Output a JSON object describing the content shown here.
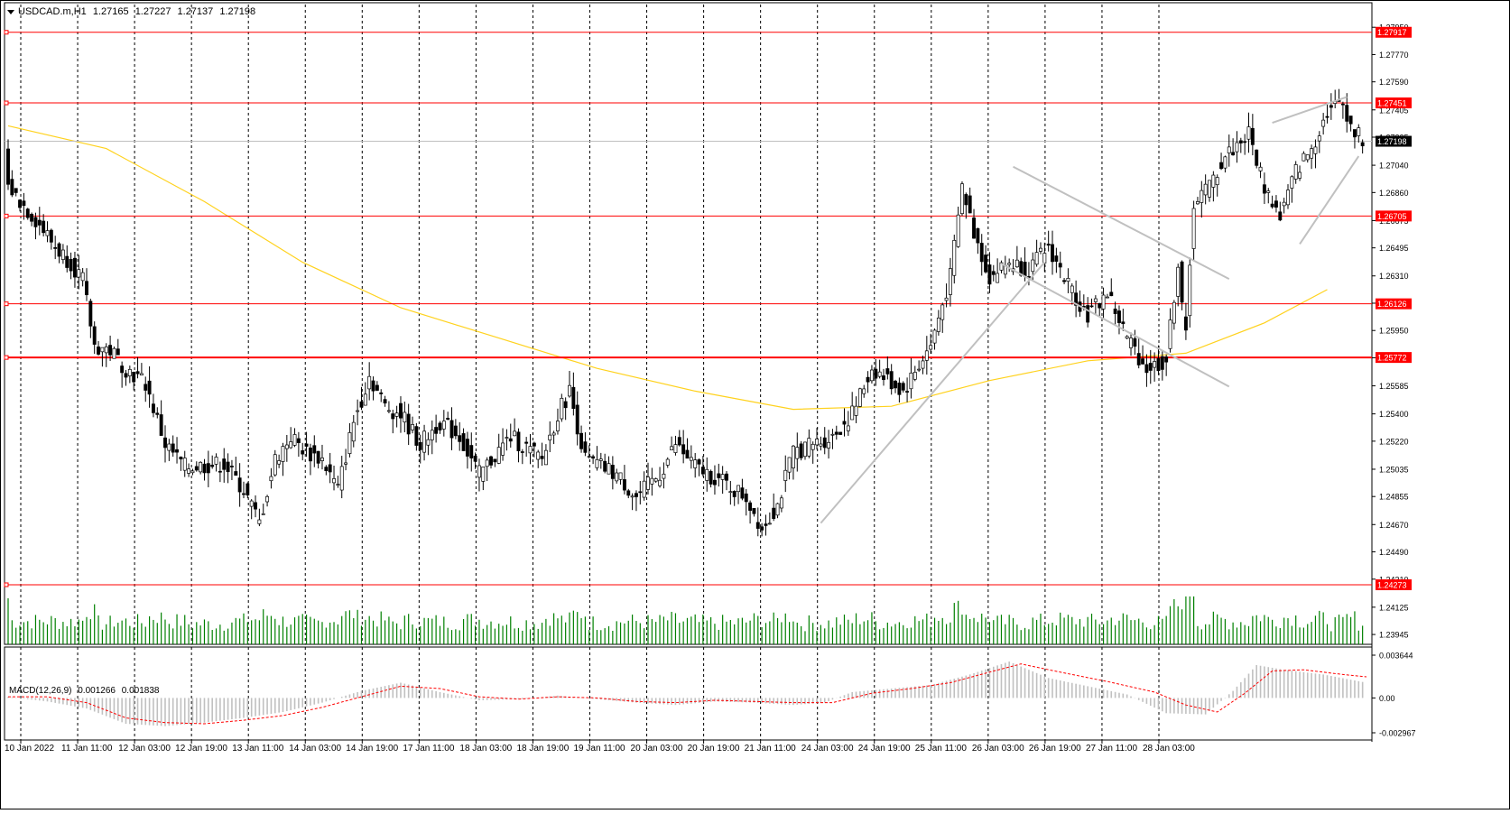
{
  "header": {
    "symbol": "USDCAD.m,H1",
    "open": "1.27165",
    "high": "1.27227",
    "low": "1.27137",
    "close": "1.27198"
  },
  "macd": {
    "label": "MACD(12,26,9)",
    "main": "0.001266",
    "signal": "0.001838",
    "axis_ticks": [
      "0.003644",
      "0.00",
      "-0.002967"
    ]
  },
  "chart_data": {
    "type": "candlestick",
    "symbol": "USDCAD.m",
    "timeframe": "H1",
    "ylim": [
      1.2388,
      1.281
    ],
    "price_ticks": [
      "1.27950",
      "1.27770",
      "1.27590",
      "1.27405",
      "1.27225",
      "1.27040",
      "1.26860",
      "1.26675",
      "1.26495",
      "1.26310",
      "1.26130",
      "1.25950",
      "1.25770",
      "1.25585",
      "1.25400",
      "1.25220",
      "1.25035",
      "1.24855",
      "1.24670",
      "1.24490",
      "1.24310",
      "1.24125",
      "1.23945"
    ],
    "x_labels": [
      "10 Jan 2022",
      "11 Jan 11:00",
      "12 Jan 03:00",
      "12 Jan 19:00",
      "13 Jan 11:00",
      "14 Jan 03:00",
      "14 Jan 19:00",
      "17 Jan 11:00",
      "18 Jan 03:00",
      "18 Jan 19:00",
      "19 Jan 11:00",
      "20 Jan 03:00",
      "20 Jan 19:00",
      "21 Jan 11:00",
      "24 Jan 03:00",
      "24 Jan 19:00",
      "25 Jan 11:00",
      "26 Jan 03:00",
      "26 Jan 19:00",
      "27 Jan 11:00",
      "28 Jan 03:00"
    ],
    "levels": [
      {
        "price": 1.27917,
        "label": "1.27917",
        "color": "#ff0000"
      },
      {
        "price": 1.27451,
        "label": "1.27451",
        "color": "#ff0000"
      },
      {
        "price": 1.26705,
        "label": "1.26705",
        "color": "#ff0000"
      },
      {
        "price": 1.26126,
        "label": "1.26126",
        "color": "#ff0000"
      },
      {
        "price": 1.25772,
        "label": "1.25772",
        "color": "#ff0000"
      },
      {
        "price": 1.24273,
        "label": "1.24273",
        "color": "#ff0000"
      }
    ],
    "current_price": {
      "price": 1.27198,
      "label": "1.27198"
    },
    "price_path": [
      [
        0,
        1.269
      ],
      [
        8,
        1.2665
      ],
      [
        12,
        1.265
      ],
      [
        16,
        1.264
      ],
      [
        19,
        1.2628
      ],
      [
        22,
        1.2585
      ],
      [
        26,
        1.2582
      ],
      [
        30,
        1.257
      ],
      [
        35,
        1.256
      ],
      [
        40,
        1.252
      ],
      [
        45,
        1.2505
      ],
      [
        55,
        1.2507
      ],
      [
        60,
        1.249
      ],
      [
        64,
        1.2468
      ],
      [
        68,
        1.251
      ],
      [
        72,
        1.2525
      ],
      [
        76,
        1.2515
      ],
      [
        80,
        1.251
      ],
      [
        84,
        1.249
      ],
      [
        88,
        1.2535
      ],
      [
        92,
        1.2565
      ],
      [
        96,
        1.2545
      ],
      [
        100,
        1.254
      ],
      [
        105,
        1.252
      ],
      [
        110,
        1.2535
      ],
      [
        115,
        1.2525
      ],
      [
        120,
        1.25
      ],
      [
        128,
        1.2525
      ],
      [
        136,
        1.251
      ],
      [
        140,
        1.254
      ],
      [
        143,
        1.2555
      ],
      [
        147,
        1.251
      ],
      [
        155,
        1.25
      ],
      [
        160,
        1.2485
      ],
      [
        166,
        1.25
      ],
      [
        170,
        1.252
      ],
      [
        175,
        1.2505
      ],
      [
        182,
        1.2495
      ],
      [
        188,
        1.2485
      ],
      [
        192,
        1.2465
      ],
      [
        196,
        1.248
      ],
      [
        200,
        1.2515
      ],
      [
        205,
        1.252
      ],
      [
        210,
        1.2525
      ],
      [
        215,
        1.254
      ],
      [
        220,
        1.257
      ],
      [
        228,
        1.2555
      ],
      [
        235,
        1.2585
      ],
      [
        240,
        1.263
      ],
      [
        243,
        1.269
      ],
      [
        246,
        1.266
      ],
      [
        250,
        1.263
      ],
      [
        255,
        1.264
      ],
      [
        260,
        1.2635
      ],
      [
        265,
        1.265
      ],
      [
        270,
        1.2625
      ],
      [
        275,
        1.2605
      ],
      [
        280,
        1.262
      ],
      [
        285,
        1.259
      ],
      [
        290,
        1.257
      ],
      [
        295,
        1.2575
      ],
      [
        298,
        1.264
      ],
      [
        300,
        1.259
      ],
      [
        302,
        1.268
      ],
      [
        306,
        1.269
      ],
      [
        310,
        1.271
      ],
      [
        316,
        1.2725
      ],
      [
        320,
        1.269
      ],
      [
        324,
        1.267
      ],
      [
        328,
        1.27
      ],
      [
        332,
        1.2715
      ],
      [
        336,
        1.274
      ],
      [
        340,
        1.2745
      ],
      [
        343,
        1.2725
      ],
      [
        346,
        1.272
      ]
    ],
    "ma_path": [
      [
        0,
        1.273
      ],
      [
        25,
        1.2715
      ],
      [
        50,
        1.268
      ],
      [
        75,
        1.264
      ],
      [
        100,
        1.261
      ],
      [
        125,
        1.259
      ],
      [
        150,
        1.257
      ],
      [
        175,
        1.2555
      ],
      [
        200,
        1.2543
      ],
      [
        225,
        1.2545
      ],
      [
        250,
        1.2562
      ],
      [
        275,
        1.2575
      ],
      [
        300,
        1.258
      ],
      [
        320,
        1.26
      ],
      [
        336,
        1.2622
      ]
    ],
    "trend_lines": [
      {
        "from": [
          207,
          1.2468
        ],
        "to": [
          264,
          1.264
        ],
        "color": "#c0c0c0"
      },
      {
        "from": [
          256,
          1.2703
        ],
        "to": [
          311,
          1.2629
        ],
        "color": "#c0c0c0"
      },
      {
        "from": [
          253,
          1.2639
        ],
        "to": [
          311,
          1.2558
        ],
        "color": "#c0c0c0"
      },
      {
        "from": [
          322,
          1.2732
        ],
        "to": [
          341,
          1.2749
        ],
        "color": "#c0c0c0"
      },
      {
        "from": [
          329,
          1.2652
        ],
        "to": [
          344,
          1.271
        ],
        "color": "#c0c0c0"
      }
    ],
    "volume_max": 100,
    "macd_range": [
      -0.002967,
      0.003644
    ],
    "macd_series": [
      [
        0,
        0.0001
      ],
      [
        10,
        -0.0003
      ],
      [
        20,
        -0.0009
      ],
      [
        30,
        -0.0022
      ],
      [
        40,
        -0.0024
      ],
      [
        50,
        -0.0021
      ],
      [
        60,
        -0.0017
      ],
      [
        70,
        -0.0012
      ],
      [
        80,
        -0.0004
      ],
      [
        90,
        0.0006
      ],
      [
        100,
        0.0013
      ],
      [
        110,
        0.0005
      ],
      [
        120,
        -0.0002
      ],
      [
        130,
        -0.0001
      ],
      [
        140,
        0.0002
      ],
      [
        150,
        -0.0001
      ],
      [
        160,
        -0.0004
      ],
      [
        170,
        -0.0006
      ],
      [
        180,
        -0.0003
      ],
      [
        190,
        -0.0004
      ],
      [
        200,
        -0.0006
      ],
      [
        208,
        -0.0004
      ],
      [
        215,
        0.0005
      ],
      [
        225,
        0.0008
      ],
      [
        235,
        0.0011
      ],
      [
        245,
        0.002
      ],
      [
        255,
        0.0031
      ],
      [
        265,
        0.0017
      ],
      [
        275,
        0.001
      ],
      [
        285,
        0.0003
      ],
      [
        295,
        -0.0013
      ],
      [
        305,
        -0.0014
      ],
      [
        312,
        0.0006
      ],
      [
        318,
        0.0028
      ],
      [
        325,
        0.0024
      ],
      [
        335,
        0.002
      ],
      [
        346,
        0.0013
      ]
    ],
    "macd_signal": [
      [
        0,
        0.0001
      ],
      [
        10,
        0.0001
      ],
      [
        20,
        -0.0004
      ],
      [
        30,
        -0.0017
      ],
      [
        40,
        -0.0021
      ],
      [
        50,
        -0.0022
      ],
      [
        60,
        -0.0019
      ],
      [
        70,
        -0.0015
      ],
      [
        80,
        -0.0008
      ],
      [
        90,
        0.0001
      ],
      [
        100,
        0.001
      ],
      [
        110,
        0.0008
      ],
      [
        120,
        0.0001
      ],
      [
        130,
        -0.0001
      ],
      [
        140,
        0.0001
      ],
      [
        150,
        0.0
      ],
      [
        160,
        -0.0003
      ],
      [
        170,
        -0.0004
      ],
      [
        180,
        -0.0002
      ],
      [
        190,
        -0.0003
      ],
      [
        200,
        -0.0004
      ],
      [
        210,
        -0.0004
      ],
      [
        220,
        0.0004
      ],
      [
        230,
        0.0008
      ],
      [
        240,
        0.0013
      ],
      [
        250,
        0.0022
      ],
      [
        258,
        0.0029
      ],
      [
        268,
        0.0022
      ],
      [
        280,
        0.0014
      ],
      [
        292,
        0.0005
      ],
      [
        300,
        -0.0006
      ],
      [
        308,
        -0.0012
      ],
      [
        315,
        0.0004
      ],
      [
        322,
        0.0023
      ],
      [
        330,
        0.0024
      ],
      [
        340,
        0.002
      ],
      [
        346,
        0.0018
      ]
    ]
  },
  "colors": {
    "background": "#ffffff",
    "candle": "#000000",
    "level_line": "#ff0000",
    "level_label_bg": "#ff0000",
    "current_label_bg": "#000000",
    "moving_average": "#ffd21e",
    "volume": "#008000",
    "macd_hist": "#c0c0c0",
    "macd_signal": "#ff0000",
    "trend_line": "#c0c0c0",
    "grid": "#000000"
  }
}
